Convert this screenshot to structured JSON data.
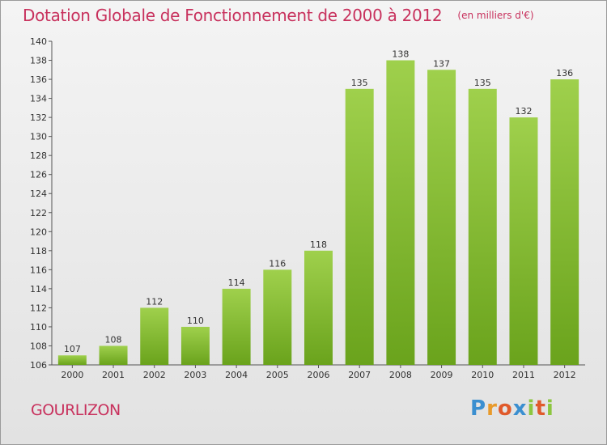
{
  "header": {
    "title": "Dotation Globale de Fonctionnement de 2000 à 2012",
    "unit": "(en milliers d'€)"
  },
  "commune": "GOURLIZON",
  "logo": {
    "letters": [
      "P",
      "r",
      "o",
      "x",
      "i",
      "t",
      "i"
    ],
    "colors": [
      "#3b8fd0",
      "#e89a2b",
      "#e05a2b",
      "#3b8fd0",
      "#8cc63f",
      "#e05a2b",
      "#8cc63f"
    ]
  },
  "chart_data": {
    "type": "bar",
    "title": "Dotation Globale de Fonctionnement de 2000 à 2012",
    "subtitle": "(en milliers d'€)",
    "categories": [
      "2000",
      "2001",
      "2002",
      "2003",
      "2004",
      "2005",
      "2006",
      "2007",
      "2008",
      "2009",
      "2010",
      "2011",
      "2012"
    ],
    "values": [
      107,
      108,
      112,
      110,
      114,
      116,
      118,
      135,
      138,
      137,
      135,
      132,
      136
    ],
    "ylim": [
      106,
      140
    ],
    "yticks": [
      106,
      108,
      110,
      112,
      114,
      116,
      118,
      120,
      122,
      124,
      126,
      128,
      130,
      132,
      134,
      136,
      138,
      140
    ],
    "grid": false,
    "bar_color_light": "#9fd04c",
    "bar_color_dark": "#6aa31c",
    "data_labels": true
  }
}
